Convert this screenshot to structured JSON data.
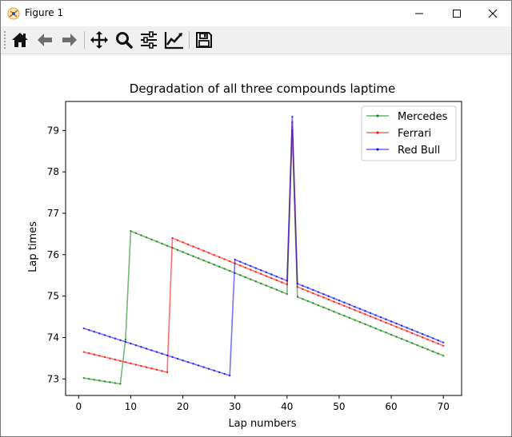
{
  "window": {
    "title": "Figure 1",
    "controls": [
      "minimize",
      "maximize",
      "close"
    ]
  },
  "toolbar": {
    "buttons": [
      {
        "name": "home-icon",
        "label": "Home"
      },
      {
        "name": "back-arrow-icon",
        "label": "Back"
      },
      {
        "name": "forward-arrow-icon",
        "label": "Forward"
      },
      {
        "name": "pan-icon",
        "label": "Pan"
      },
      {
        "name": "zoom-icon",
        "label": "Zoom"
      },
      {
        "name": "subplots-icon",
        "label": "Configure subplots"
      },
      {
        "name": "axes-edit-icon",
        "label": "Edit axis"
      },
      {
        "name": "save-icon",
        "label": "Save"
      }
    ]
  },
  "chart_data": {
    "type": "line",
    "title": "Degradation of all three compounds laptime",
    "xlabel": "Lap numbers",
    "ylabel": "Lap times",
    "xlim": [
      -2.5,
      73.5
    ],
    "ylim": [
      72.6,
      79.7
    ],
    "xticks": [
      0,
      10,
      20,
      30,
      40,
      50,
      60,
      70
    ],
    "yticks": [
      73,
      74,
      75,
      76,
      77,
      78,
      79
    ],
    "grid": false,
    "legend": "top-right",
    "series": [
      {
        "name": "Mercedes",
        "color": "#008000",
        "points": [
          [
            1,
            73.02
          ],
          [
            8,
            72.88
          ],
          [
            9,
            73.95
          ],
          [
            10,
            76.57
          ],
          [
            40,
            75.05
          ],
          [
            41,
            79.0
          ],
          [
            42,
            74.98
          ],
          [
            70,
            73.56
          ]
        ]
      },
      {
        "name": "Ferrari",
        "color": "#ff0000",
        "points": [
          [
            1,
            73.65
          ],
          [
            17,
            73.16
          ],
          [
            18,
            76.4
          ],
          [
            40,
            75.28
          ],
          [
            41,
            79.2
          ],
          [
            42,
            75.22
          ],
          [
            70,
            73.8
          ]
        ]
      },
      {
        "name": "Red Bull",
        "color": "#0000ff",
        "points": [
          [
            1,
            74.22
          ],
          [
            29,
            73.08
          ],
          [
            30,
            75.88
          ],
          [
            40,
            75.37
          ],
          [
            41,
            79.33
          ],
          [
            42,
            75.3
          ],
          [
            70,
            73.88
          ]
        ]
      }
    ]
  }
}
